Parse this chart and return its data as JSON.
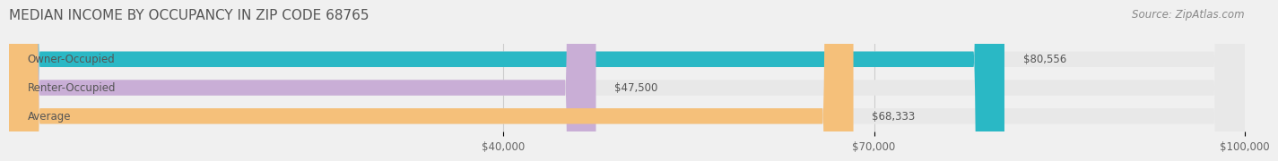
{
  "title": "MEDIAN INCOME BY OCCUPANCY IN ZIP CODE 68765",
  "source": "Source: ZipAtlas.com",
  "categories": [
    "Owner-Occupied",
    "Renter-Occupied",
    "Average"
  ],
  "values": [
    80556,
    47500,
    68333
  ],
  "bar_colors": [
    "#2ab8c5",
    "#c9aed6",
    "#f5c07a"
  ],
  "bar_labels": [
    "$80,556",
    "$47,500",
    "$68,333"
  ],
  "xlim": [
    0,
    100000
  ],
  "xticks": [
    40000,
    70000,
    100000
  ],
  "xtick_labels": [
    "$40,000",
    "$70,000",
    "$100,000"
  ],
  "bg_color": "#f0f0f0",
  "bar_bg_color": "#e8e8e8",
  "title_fontsize": 11,
  "label_fontsize": 8.5,
  "source_fontsize": 8.5
}
